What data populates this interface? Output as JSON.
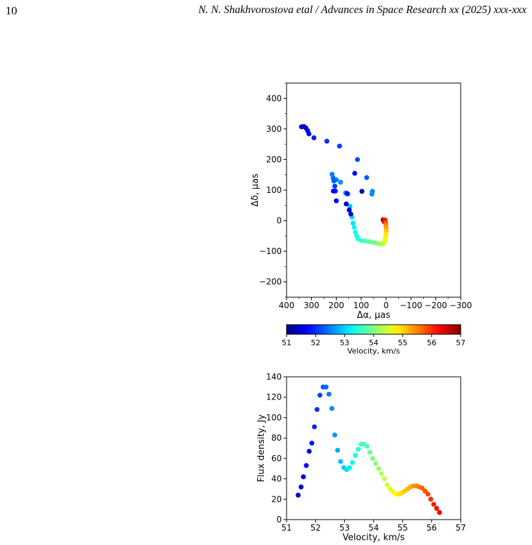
{
  "header": {
    "page_number": "10",
    "running_title": "N. N. Shakhvorostova etal / Advances in Space Research xx (2025) xxx-xxx"
  },
  "chart_data": [
    {
      "type": "scatter",
      "xlabel": "Δα, μas",
      "ylabel": "Δδ, μas",
      "xlim": [
        400,
        -300
      ],
      "ylim": [
        -250,
        450
      ],
      "x_reversed": true,
      "xticks": [
        "400",
        "300",
        "200",
        "100",
        "0",
        "−100",
        "−200",
        "−300"
      ],
      "xtick_values": [
        400,
        300,
        200,
        100,
        0,
        -100,
        -200,
        -300
      ],
      "yticks": [
        "−200",
        "−100",
        "0",
        "100",
        "200",
        "300",
        "400"
      ],
      "ytick_values": [
        -200,
        -100,
        0,
        100,
        200,
        300,
        400
      ],
      "colormap": "jet",
      "color_range": [
        51,
        57
      ],
      "points": [
        {
          "x": 340,
          "y": 307,
          "v": 51.4
        },
        {
          "x": 330,
          "y": 308,
          "v": 51.5
        },
        {
          "x": 322,
          "y": 303,
          "v": 51.4
        },
        {
          "x": 315,
          "y": 294,
          "v": 51.6
        },
        {
          "x": 310,
          "y": 284,
          "v": 51.7
        },
        {
          "x": 290,
          "y": 271,
          "v": 51.9
        },
        {
          "x": 238,
          "y": 260,
          "v": 52.0
        },
        {
          "x": 187,
          "y": 244,
          "v": 52.1
        },
        {
          "x": 115,
          "y": 200,
          "v": 52.2
        },
        {
          "x": 126,
          "y": 155,
          "v": 51.8
        },
        {
          "x": 78,
          "y": 141,
          "v": 52.3
        },
        {
          "x": 55,
          "y": 96,
          "v": 52.5
        },
        {
          "x": 57,
          "y": 87,
          "v": 52.6
        },
        {
          "x": 12,
          "y": 3,
          "v": 56.8
        },
        {
          "x": 8,
          "y": -3,
          "v": 56.6
        },
        {
          "x": 4,
          "y": 2,
          "v": 56.2
        },
        {
          "x": 2,
          "y": -5,
          "v": 55.9
        },
        {
          "x": 1,
          "y": -12,
          "v": 55.5
        },
        {
          "x": 0,
          "y": -22,
          "v": 55.3
        },
        {
          "x": -1,
          "y": -33,
          "v": 55.1
        },
        {
          "x": 1,
          "y": -45,
          "v": 54.9
        },
        {
          "x": 3,
          "y": -56,
          "v": 54.8
        },
        {
          "x": 5,
          "y": -64,
          "v": 54.7
        },
        {
          "x": 7,
          "y": -71,
          "v": 54.6
        },
        {
          "x": 10,
          "y": -75,
          "v": 54.5
        },
        {
          "x": 20,
          "y": -76,
          "v": 54.3
        },
        {
          "x": 32,
          "y": -75,
          "v": 54.1
        },
        {
          "x": 45,
          "y": -72,
          "v": 54.0
        },
        {
          "x": 58,
          "y": -70,
          "v": 53.9
        },
        {
          "x": 72,
          "y": -68,
          "v": 53.8
        },
        {
          "x": 86,
          "y": -66,
          "v": 53.7
        },
        {
          "x": 100,
          "y": -65,
          "v": 53.6
        },
        {
          "x": 112,
          "y": -60,
          "v": 53.5
        },
        {
          "x": 118,
          "y": -50,
          "v": 53.4
        },
        {
          "x": 123,
          "y": -38,
          "v": 53.3
        },
        {
          "x": 128,
          "y": -22,
          "v": 53.2
        },
        {
          "x": 133,
          "y": -8,
          "v": 53.1
        },
        {
          "x": 137,
          "y": 12,
          "v": 53.0
        },
        {
          "x": 145,
          "y": 47,
          "v": 52.9
        },
        {
          "x": 153,
          "y": 87,
          "v": 52.8
        },
        {
          "x": 163,
          "y": 91,
          "v": 52.7
        },
        {
          "x": 183,
          "y": 126,
          "v": 52.6
        },
        {
          "x": 200,
          "y": 134,
          "v": 52.5
        },
        {
          "x": 213,
          "y": 140,
          "v": 52.4
        },
        {
          "x": 217,
          "y": 152,
          "v": 52.5
        },
        {
          "x": 210,
          "y": 130,
          "v": 52.3
        },
        {
          "x": 206,
          "y": 113,
          "v": 52.1
        },
        {
          "x": 204,
          "y": 97,
          "v": 51.9
        },
        {
          "x": 212,
          "y": 97,
          "v": 51.8
        },
        {
          "x": 200,
          "y": 65,
          "v": 51.6
        },
        {
          "x": 157,
          "y": 89,
          "v": 51.7
        },
        {
          "x": 160,
          "y": 55,
          "v": 51.5
        },
        {
          "x": 148,
          "y": 35,
          "v": 51.4
        },
        {
          "x": 142,
          "y": 22,
          "v": 51.6
        },
        {
          "x": 97,
          "y": 96,
          "v": 51.3
        }
      ]
    },
    {
      "type": "colorbar",
      "label": "Velocity, km/s",
      "range": [
        51,
        57
      ],
      "ticks": [
        "51",
        "52",
        "53",
        "54",
        "55",
        "56",
        "57"
      ],
      "tick_values": [
        51,
        52,
        53,
        54,
        55,
        56,
        57
      ],
      "colormap": "jet"
    },
    {
      "type": "scatter",
      "xlabel": "Velocity, km/s",
      "ylabel": "Flux density, Jy",
      "xlim": [
        51,
        57
      ],
      "ylim": [
        0,
        140
      ],
      "xticks": [
        "51",
        "52",
        "53",
        "54",
        "55",
        "56",
        "57"
      ],
      "xtick_values": [
        51,
        52,
        53,
        54,
        55,
        56,
        57
      ],
      "yticks": [
        "0",
        "20",
        "40",
        "60",
        "80",
        "100",
        "120",
        "140"
      ],
      "ytick_values": [
        0,
        20,
        40,
        60,
        80,
        100,
        120,
        140
      ],
      "colormap": "jet",
      "color_range": [
        51,
        57
      ],
      "points": [
        {
          "x": 51.4,
          "y": 24
        },
        {
          "x": 51.5,
          "y": 32
        },
        {
          "x": 51.58,
          "y": 42
        },
        {
          "x": 51.68,
          "y": 53
        },
        {
          "x": 51.78,
          "y": 67
        },
        {
          "x": 51.87,
          "y": 75
        },
        {
          "x": 51.96,
          "y": 91
        },
        {
          "x": 52.05,
          "y": 108
        },
        {
          "x": 52.15,
          "y": 122
        },
        {
          "x": 52.26,
          "y": 130
        },
        {
          "x": 52.36,
          "y": 130
        },
        {
          "x": 52.46,
          "y": 123
        },
        {
          "x": 52.56,
          "y": 109
        },
        {
          "x": 52.66,
          "y": 83
        },
        {
          "x": 52.76,
          "y": 68
        },
        {
          "x": 52.86,
          "y": 57
        },
        {
          "x": 52.97,
          "y": 51
        },
        {
          "x": 53.07,
          "y": 49
        },
        {
          "x": 53.17,
          "y": 51
        },
        {
          "x": 53.27,
          "y": 56
        },
        {
          "x": 53.37,
          "y": 63
        },
        {
          "x": 53.47,
          "y": 69
        },
        {
          "x": 53.57,
          "y": 74
        },
        {
          "x": 53.67,
          "y": 74
        },
        {
          "x": 53.77,
          "y": 72
        },
        {
          "x": 53.87,
          "y": 66
        },
        {
          "x": 53.97,
          "y": 60
        },
        {
          "x": 54.07,
          "y": 55
        },
        {
          "x": 54.17,
          "y": 50
        },
        {
          "x": 54.27,
          "y": 45
        },
        {
          "x": 54.37,
          "y": 40
        },
        {
          "x": 54.47,
          "y": 34
        },
        {
          "x": 54.57,
          "y": 30
        },
        {
          "x": 54.67,
          "y": 27
        },
        {
          "x": 54.77,
          "y": 25
        },
        {
          "x": 54.87,
          "y": 25
        },
        {
          "x": 54.97,
          "y": 26
        },
        {
          "x": 55.07,
          "y": 28
        },
        {
          "x": 55.17,
          "y": 30
        },
        {
          "x": 55.27,
          "y": 32
        },
        {
          "x": 55.37,
          "y": 33
        },
        {
          "x": 55.47,
          "y": 33
        },
        {
          "x": 55.57,
          "y": 32
        },
        {
          "x": 55.67,
          "y": 31
        },
        {
          "x": 55.77,
          "y": 28
        },
        {
          "x": 55.87,
          "y": 25
        },
        {
          "x": 55.97,
          "y": 20
        },
        {
          "x": 56.07,
          "y": 15
        },
        {
          "x": 56.17,
          "y": 11
        },
        {
          "x": 56.27,
          "y": 7
        }
      ]
    }
  ]
}
